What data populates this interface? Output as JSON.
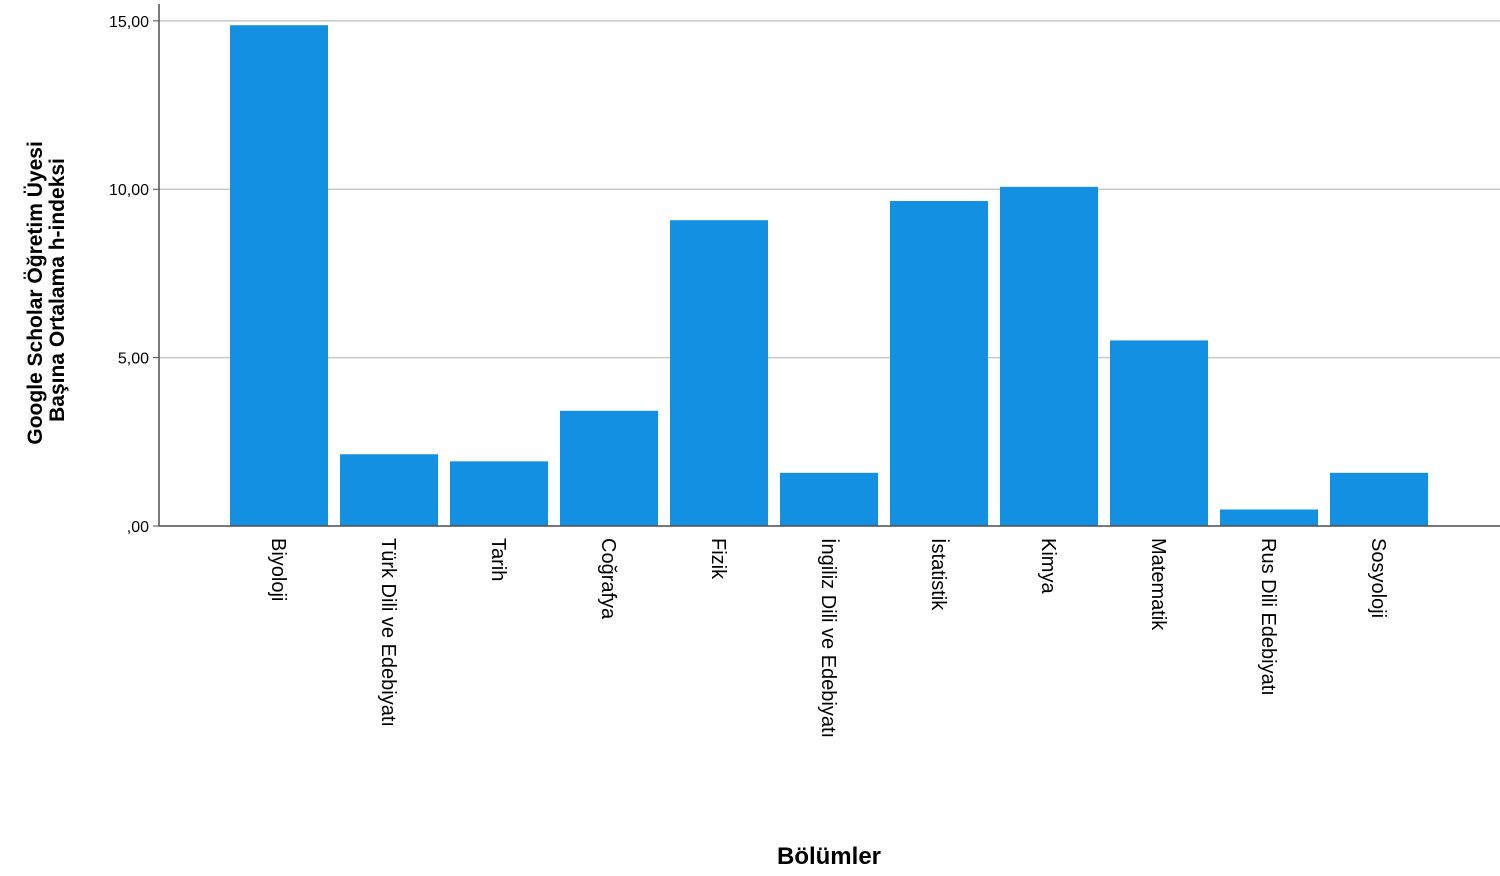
{
  "chart_data": {
    "type": "bar",
    "categories": [
      "Biyoloji",
      "Türk Dili ve Edebiyatı",
      "Tarih",
      "Coğrafya",
      "Fizik",
      "İngiliz Dili ve Edebiyatı",
      "İstatistik",
      "Kimya",
      "Matematik",
      "Rus Dili Edebiyatı",
      "Sosyoloji"
    ],
    "values": [
      14.87,
      2.13,
      1.92,
      3.42,
      9.08,
      1.58,
      9.65,
      10.07,
      5.51,
      0.49,
      1.58
    ],
    "xlabel": "Bölümler",
    "ylabel_lines": [
      "Google Scholar Öğretim Üyesi",
      "Başına Ortalama h-indeksi"
    ],
    "ylim": [
      0,
      15.5
    ],
    "yticks": [
      0,
      5,
      10,
      15
    ],
    "ytick_labels": [
      ",00",
      "5,00",
      "10,00",
      "15,00"
    ],
    "grid": true,
    "bar_color": "#1490e3",
    "grid_color": "#c8c8c8",
    "axis_color": "#4d4d4d"
  }
}
